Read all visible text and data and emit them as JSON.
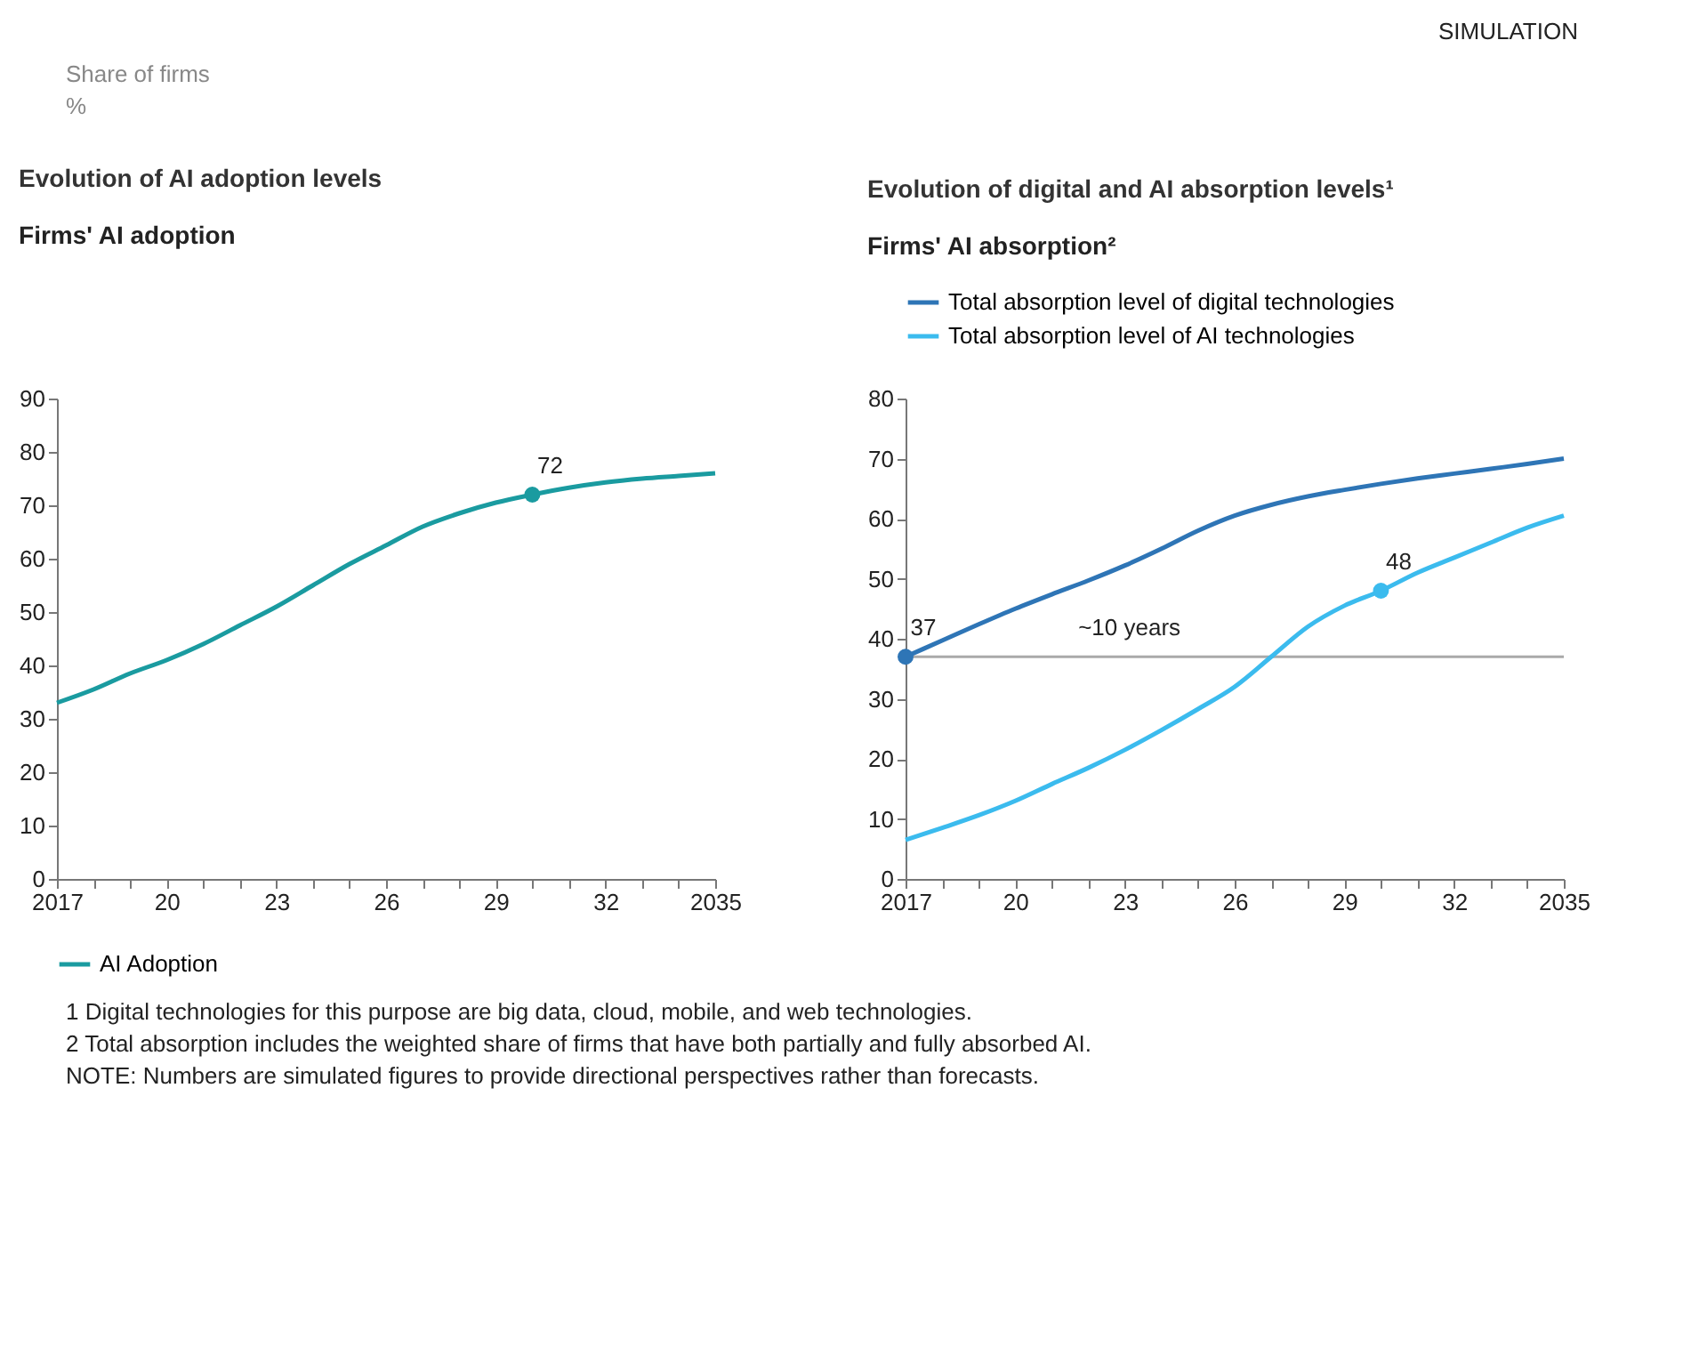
{
  "chart_data": [
    {
      "type": "line",
      "title": "Evolution of AI adoption levels",
      "subtitle": "Firms' AI adoption",
      "annotations": [
        "SIMULATION",
        "Share of firms",
        "%"
      ],
      "x": [
        2017,
        2018,
        2019,
        2020,
        2021,
        2022,
        2023,
        2024,
        2025,
        2026,
        2027,
        2028,
        2029,
        2030,
        2031,
        2032,
        2033,
        2034,
        2035
      ],
      "series": [
        {
          "name": "AI Adoption",
          "color": "#1a9ba0",
          "values": [
            33,
            35.5,
            38.5,
            41,
            44,
            47.5,
            51,
            55,
            59,
            62.5,
            66,
            68.5,
            70.5,
            72,
            73.3,
            74.3,
            75,
            75.5,
            76
          ]
        },
        {
          "type": "scatter",
          "color": "#1a9ba0",
          "values": [
            null,
            null,
            null,
            null,
            null,
            null,
            null,
            null,
            null,
            null,
            null,
            null,
            null,
            72,
            null,
            null,
            null,
            null,
            null
          ],
          "value_labels": [
            null,
            null,
            null,
            null,
            null,
            null,
            null,
            null,
            null,
            null,
            null,
            null,
            null,
            "72",
            null,
            null,
            null,
            null,
            null
          ]
        }
      ],
      "xlim": [
        2017,
        2035
      ],
      "ylim": [
        0,
        90
      ],
      "xticks": [
        2017,
        {
          "value": 2018,
          "label": null
        },
        {
          "value": 2019,
          "label": null
        },
        {
          "value": 2020,
          "label": "20"
        },
        {
          "value": 2021,
          "label": null
        },
        {
          "value": 2022,
          "label": null
        },
        {
          "value": 2023,
          "label": "23"
        },
        {
          "value": 2024,
          "label": null
        },
        {
          "value": 2025,
          "label": null
        },
        {
          "value": 2026,
          "label": "26"
        },
        {
          "value": 2027,
          "label": null
        },
        {
          "value": 2028,
          "label": null
        },
        {
          "value": 2029,
          "label": "29"
        },
        {
          "value": 2030,
          "label": null
        },
        {
          "value": 2031,
          "label": null
        },
        {
          "value": 2032,
          "label": "32"
        },
        {
          "value": 2033,
          "label": null
        },
        {
          "value": 2034,
          "label": null
        },
        2035
      ],
      "yticks": [
        0,
        10,
        20,
        30,
        40,
        50,
        60,
        70,
        80,
        90
      ],
      "legend": "bottom"
    },
    {
      "type": "line",
      "title": "Evolution of digital and AI absorption levels¹",
      "subtitle": "Firms' AI absorption²",
      "annotations": [
        "1 Digital technologies for this purpose are big data, cloud, mobile, and web technologies.",
        "2 Total absorption includes the weighted share of firms that have both partially and fully absorbed AI.",
        "NOTE: Numbers are simulated figures to provide directional perspectives rather than forecasts."
      ],
      "x": [
        2017,
        2018,
        2019,
        2020,
        2021,
        2022,
        2023,
        2024,
        2025,
        2026,
        2027,
        2028,
        2029,
        2030,
        2031,
        2032,
        2033,
        2034,
        2035
      ],
      "series": [
        {
          "name": "Total absorption level of digital technologies",
          "color": "#2e75b6",
          "values": [
            37,
            39.7,
            42.4,
            45,
            47.4,
            49.7,
            52.2,
            55,
            58,
            60.5,
            62.3,
            63.7,
            64.8,
            65.8,
            66.7,
            67.5,
            68.3,
            69.1,
            70
          ]
        },
        {
          "name": "Total absorption level of AI technologies",
          "color": "#3bbbee",
          "values": [
            6.5,
            8.5,
            10.6,
            13,
            15.8,
            18.5,
            21.5,
            24.8,
            28.3,
            32,
            37,
            42,
            45.5,
            48,
            51,
            53.5,
            56,
            58.5,
            60.5
          ]
        },
        {
          "type": "scatter",
          "color": "#2e75b6",
          "values": [
            37,
            null,
            null,
            null,
            null,
            null,
            null,
            null,
            null,
            null,
            null,
            null,
            null,
            null,
            null,
            null,
            null,
            null,
            null
          ],
          "value_labels": [
            "37",
            null,
            null,
            null,
            null,
            null,
            null,
            null,
            null,
            null,
            null,
            null,
            null,
            null,
            null,
            null,
            null,
            null,
            null
          ]
        },
        {
          "type": "scatter",
          "color": "#3bbbee",
          "values": [
            null,
            null,
            null,
            null,
            null,
            null,
            null,
            null,
            null,
            null,
            null,
            null,
            null,
            48,
            null,
            null,
            null,
            null,
            null
          ],
          "value_labels": [
            null,
            null,
            null,
            null,
            null,
            null,
            null,
            null,
            null,
            null,
            null,
            null,
            null,
            "48",
            null,
            null,
            null,
            null,
            null
          ]
        }
      ],
      "ref_lines": [
        {
          "axis": "y",
          "value": 37,
          "label": "~10 years",
          "color": "#aaaaaa"
        }
      ],
      "xlim": [
        2017,
        2035
      ],
      "ylim": [
        0,
        80
      ],
      "xticks": [
        2017,
        {
          "value": 2018,
          "label": null
        },
        {
          "value": 2019,
          "label": null
        },
        {
          "value": 2020,
          "label": "20"
        },
        {
          "value": 2021,
          "label": null
        },
        {
          "value": 2022,
          "label": null
        },
        {
          "value": 2023,
          "label": "23"
        },
        {
          "value": 2024,
          "label": null
        },
        {
          "value": 2025,
          "label": null
        },
        {
          "value": 2026,
          "label": "26"
        },
        {
          "value": 2027,
          "label": null
        },
        {
          "value": 2028,
          "label": null
        },
        {
          "value": 2029,
          "label": "29"
        },
        {
          "value": 2030,
          "label": null
        },
        {
          "value": 2031,
          "label": null
        },
        {
          "value": 2032,
          "label": "32"
        },
        {
          "value": 2033,
          "label": null
        },
        {
          "value": 2034,
          "label": null
        },
        2035
      ],
      "yticks": [
        0,
        10,
        20,
        30,
        40,
        50,
        60,
        70,
        80
      ],
      "legend": "top left"
    }
  ]
}
